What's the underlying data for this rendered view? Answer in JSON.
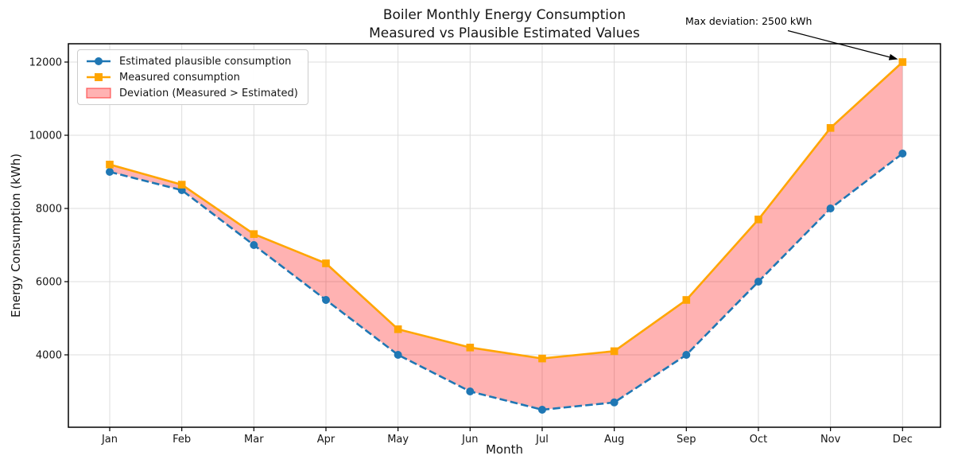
{
  "chart_data": {
    "type": "line",
    "title": "Boiler Monthly Energy Consumption",
    "subtitle": "Measured vs Plausible Estimated Values",
    "xlabel": "Month",
    "ylabel": "Energy Consumption (kWh)",
    "categories": [
      "Jan",
      "Feb",
      "Mar",
      "Apr",
      "May",
      "Jun",
      "Jul",
      "Aug",
      "Sep",
      "Oct",
      "Nov",
      "Dec"
    ],
    "series": [
      {
        "name": "Estimated plausible consumption",
        "values": [
          9000,
          8500,
          7000,
          5500,
          4000,
          3000,
          2500,
          2700,
          4000,
          6000,
          8000,
          9500
        ],
        "color": "#1f77b4",
        "line_style": "dashed",
        "marker": "circle"
      },
      {
        "name": "Measured consumption",
        "values": [
          9200,
          8650,
          7300,
          6500,
          4700,
          4200,
          3900,
          4100,
          5500,
          7700,
          10200,
          12000
        ],
        "color": "#ffa500",
        "line_style": "solid",
        "marker": "square"
      }
    ],
    "fill_between": {
      "label": "Deviation (Measured > Estimated)",
      "color": "#ff0000",
      "opacity": 0.3,
      "upper": "Measured consumption",
      "lower": "Estimated plausible consumption"
    },
    "annotation": {
      "text": "Max deviation: 2500 kWh",
      "points_to": {
        "category": "Dec",
        "value": 12000
      }
    },
    "yticks": [
      4000,
      6000,
      8000,
      10000,
      12000
    ],
    "ylim": [
      2000,
      12500
    ],
    "grid": true,
    "legend_position": "upper left",
    "legend": [
      "Estimated plausible consumption",
      "Measured consumption",
      "Deviation (Measured > Estimated)"
    ]
  }
}
